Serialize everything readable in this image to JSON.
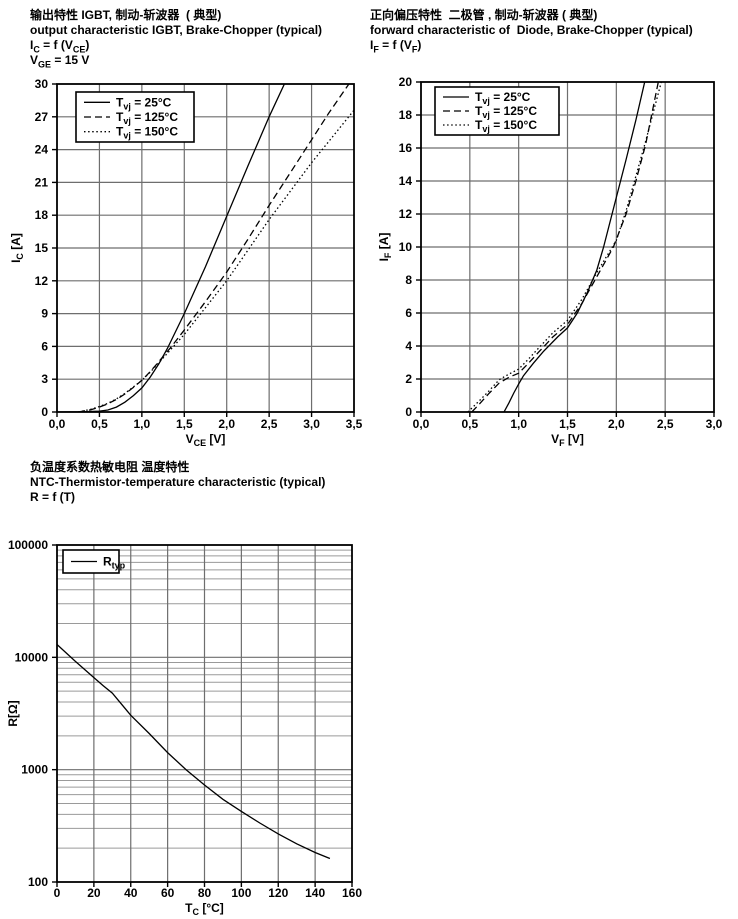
{
  "page": {
    "background": "#ffffff"
  },
  "colors": {
    "text": "#000000",
    "curve": "#000000",
    "frame": "#000000",
    "grid_major": "#6e6e6e",
    "grid_minor": "#9a9a9a",
    "legend_bg": "#ffffff"
  },
  "chart_data": [
    {
      "type": "line",
      "title_cn": "输出特性 IGBT, 制动-斩波器  ( 典型)",
      "title_en": "output characteristic IGBT, Brake-Chopper (typical)",
      "formula": "I~C~ = f (V~CE~)",
      "condition": "V~GE~ = 15 V",
      "xlabel": "V~CE~  [V]",
      "ylabel": "I~C~ [A]",
      "xlim": [
        0,
        3.5
      ],
      "ylim": [
        0,
        30
      ],
      "ylog": false,
      "grid": "major-both",
      "xticks": {
        "values": [
          0,
          0.5,
          1.0,
          1.5,
          2.0,
          2.5,
          3.0,
          3.5
        ],
        "labels": [
          "0,0",
          "0,5",
          "1,0",
          "1,5",
          "2,0",
          "2,5",
          "3,0",
          "3,5"
        ]
      },
      "yticks": {
        "values": [
          0,
          3,
          6,
          9,
          12,
          15,
          18,
          21,
          24,
          27,
          30
        ],
        "labels": [
          "0",
          "3",
          "6",
          "9",
          "12",
          "15",
          "18",
          "21",
          "24",
          "27",
          "30"
        ]
      },
      "legend": {
        "position": "top-left",
        "entries": [
          {
            "label": "T~vj~ = 25°C",
            "style": "solid"
          },
          {
            "label": "T~vj~ = 125°C",
            "style": "dashed"
          },
          {
            "label": "T~vj~ = 150°C",
            "style": "dotted"
          }
        ]
      },
      "series": [
        {
          "name": "Tvj = 25°C",
          "style": "solid",
          "points": [
            [
              0,
              0
            ],
            [
              0.3,
              0.02
            ],
            [
              0.5,
              0.08
            ],
            [
              0.6,
              0.18
            ],
            [
              0.7,
              0.45
            ],
            [
              0.8,
              0.9
            ],
            [
              0.9,
              1.5
            ],
            [
              1.0,
              2.2
            ],
            [
              1.1,
              3.2
            ],
            [
              1.2,
              4.4
            ],
            [
              1.3,
              5.8
            ],
            [
              1.4,
              7.4
            ],
            [
              1.5,
              9.0
            ],
            [
              1.75,
              13.3
            ],
            [
              2.0,
              17.9
            ],
            [
              2.25,
              22.5
            ],
            [
              2.5,
              27.0
            ],
            [
              2.68,
              30
            ]
          ]
        },
        {
          "name": "Tvj = 125°C",
          "style": "dashed",
          "points": [
            [
              0.25,
              0
            ],
            [
              0.4,
              0.2
            ],
            [
              0.5,
              0.45
            ],
            [
              0.6,
              0.75
            ],
            [
              0.7,
              1.15
            ],
            [
              0.8,
              1.65
            ],
            [
              0.9,
              2.25
            ],
            [
              1.0,
              2.9
            ],
            [
              1.1,
              3.7
            ],
            [
              1.2,
              4.6
            ],
            [
              1.35,
              6.0
            ],
            [
              1.5,
              7.5
            ],
            [
              1.75,
              10.1
            ],
            [
              2.0,
              12.8
            ],
            [
              2.25,
              15.8
            ],
            [
              2.5,
              18.9
            ],
            [
              2.75,
              21.9
            ],
            [
              3.0,
              24.9
            ],
            [
              3.2,
              27.3
            ],
            [
              3.44,
              30
            ]
          ]
        },
        {
          "name": "Tvj = 150°C",
          "style": "dotted",
          "points": [
            [
              0.25,
              0
            ],
            [
              0.4,
              0.25
            ],
            [
              0.5,
              0.5
            ],
            [
              0.6,
              0.8
            ],
            [
              0.7,
              1.2
            ],
            [
              0.8,
              1.7
            ],
            [
              0.9,
              2.3
            ],
            [
              1.0,
              2.9
            ],
            [
              1.1,
              3.65
            ],
            [
              1.2,
              4.5
            ],
            [
              1.35,
              5.8
            ],
            [
              1.5,
              7.1
            ],
            [
              1.75,
              9.55
            ],
            [
              2.0,
              12.0
            ],
            [
              2.25,
              14.8
            ],
            [
              2.5,
              17.6
            ],
            [
              2.75,
              20.2
            ],
            [
              3.0,
              22.8
            ],
            [
              3.25,
              25.2
            ],
            [
              3.5,
              27.6
            ]
          ]
        }
      ]
    },
    {
      "type": "line",
      "title_cn": "正向偏压特性  二极管 , 制动-斩波器 ( 典型)",
      "title_en": "forward characteristic of  Diode, Brake-Chopper (typical)",
      "formula": "I~F~ = f (V~F~)",
      "condition": "",
      "xlabel": "V~F~ [V]",
      "ylabel": "I~F~ [A]",
      "xlim": [
        0,
        3.0
      ],
      "ylim": [
        0,
        20
      ],
      "ylog": false,
      "grid": "major-both",
      "xticks": {
        "values": [
          0,
          0.5,
          1.0,
          1.5,
          2.0,
          2.5,
          3.0
        ],
        "labels": [
          "0,0",
          "0,5",
          "1,0",
          "1,5",
          "2,0",
          "2,5",
          "3,0"
        ]
      },
      "yticks": {
        "values": [
          0,
          2,
          4,
          6,
          8,
          10,
          12,
          14,
          16,
          18,
          20
        ],
        "labels": [
          "0",
          "2",
          "4",
          "6",
          "8",
          "10",
          "12",
          "14",
          "16",
          "18",
          "20"
        ]
      },
      "legend": {
        "position": "top-left",
        "entries": [
          {
            "label": "T~vj~ = 25°C",
            "style": "solid"
          },
          {
            "label": "T~vj~ = 125°C",
            "style": "dashed"
          },
          {
            "label": "T~vj~ = 150°C",
            "style": "dotted"
          }
        ]
      },
      "series": [
        {
          "name": "Tvj = 25°C",
          "style": "solid",
          "points": [
            [
              0.85,
              0
            ],
            [
              0.9,
              0.55
            ],
            [
              0.95,
              1.15
            ],
            [
              1.0,
              1.7
            ],
            [
              1.05,
              2.2
            ],
            [
              1.15,
              2.95
            ],
            [
              1.25,
              3.65
            ],
            [
              1.4,
              4.55
            ],
            [
              1.5,
              5.1
            ],
            [
              1.6,
              6.0
            ],
            [
              1.7,
              7.2
            ],
            [
              1.8,
              8.6
            ],
            [
              1.87,
              10.0
            ],
            [
              2.0,
              13.0
            ],
            [
              2.1,
              15.3
            ],
            [
              2.2,
              17.7
            ],
            [
              2.29,
              20
            ]
          ]
        },
        {
          "name": "Tvj = 125°C",
          "style": "dashed",
          "points": [
            [
              0.52,
              0
            ],
            [
              0.6,
              0.5
            ],
            [
              0.7,
              1.15
            ],
            [
              0.8,
              1.75
            ],
            [
              0.9,
              2.1
            ],
            [
              1.0,
              2.35
            ],
            [
              1.1,
              2.95
            ],
            [
              1.2,
              3.6
            ],
            [
              1.35,
              4.55
            ],
            [
              1.5,
              5.3
            ],
            [
              1.65,
              6.6
            ],
            [
              1.8,
              8.2
            ],
            [
              1.97,
              10.0
            ],
            [
              2.1,
              12.0
            ],
            [
              2.2,
              14.0
            ],
            [
              2.3,
              16.2
            ],
            [
              2.43,
              20
            ]
          ]
        },
        {
          "name": "Tvj = 150°C",
          "style": "dotted",
          "points": [
            [
              0.48,
              0
            ],
            [
              0.6,
              0.7
            ],
            [
              0.7,
              1.3
            ],
            [
              0.8,
              1.95
            ],
            [
              0.9,
              2.3
            ],
            [
              1.0,
              2.6
            ],
            [
              1.1,
              3.2
            ],
            [
              1.2,
              3.85
            ],
            [
              1.35,
              4.8
            ],
            [
              1.5,
              5.55
            ],
            [
              1.65,
              6.85
            ],
            [
              1.8,
              8.45
            ],
            [
              2.0,
              10.4
            ],
            [
              2.1,
              12.2
            ],
            [
              2.2,
              14.3
            ],
            [
              2.3,
              16.4
            ],
            [
              2.46,
              20
            ]
          ]
        }
      ]
    },
    {
      "type": "line",
      "title_cn": "负温度系数热敏电阻 温度特性",
      "title_en": "NTC-Thermistor-temperature characteristic (typical)",
      "formula": "R = f (T)",
      "condition": "",
      "xlabel": "T~C~ [°C]",
      "ylabel": "R[Ω]",
      "xlim": [
        0,
        160
      ],
      "ylim": [
        100,
        100000
      ],
      "ylog": true,
      "grid": "major-both-log-minor",
      "xticks": {
        "values": [
          0,
          20,
          40,
          60,
          80,
          100,
          120,
          140,
          160
        ],
        "labels": [
          "0",
          "20",
          "40",
          "60",
          "80",
          "100",
          "120",
          "140",
          "160"
        ]
      },
      "yticks": {
        "values": [
          100,
          1000,
          10000,
          100000
        ],
        "labels": [
          "100",
          "1000",
          "10000",
          "100000"
        ]
      },
      "legend": {
        "position": "top-left",
        "entries": [
          {
            "label": "R~typ~",
            "style": "solid"
          }
        ]
      },
      "series": [
        {
          "name": "Rtyp",
          "style": "solid",
          "points": [
            [
              0,
              13000
            ],
            [
              10,
              9200
            ],
            [
              20,
              6600
            ],
            [
              25,
              5600
            ],
            [
              30,
              4800
            ],
            [
              40,
              3050
            ],
            [
              50,
              2100
            ],
            [
              60,
              1420
            ],
            [
              70,
              1000
            ],
            [
              80,
              730
            ],
            [
              90,
              545
            ],
            [
              100,
              425
            ],
            [
              110,
              335
            ],
            [
              120,
              268
            ],
            [
              130,
              219
            ],
            [
              140,
              183
            ],
            [
              148,
              162
            ]
          ]
        }
      ]
    }
  ]
}
